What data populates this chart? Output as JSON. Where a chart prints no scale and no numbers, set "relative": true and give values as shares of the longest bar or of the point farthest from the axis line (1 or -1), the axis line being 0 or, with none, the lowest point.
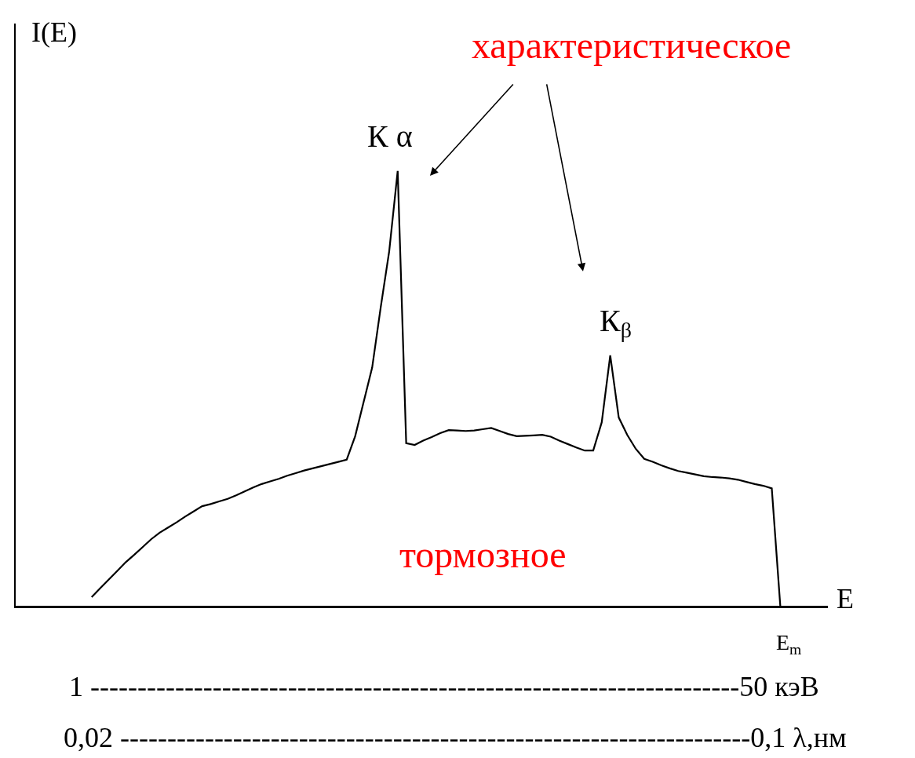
{
  "chart_data": {
    "type": "line",
    "relative": true,
    "xlabel": "E",
    "ylabel": "I(E)",
    "annotations": [
      "характеристическое",
      "К α",
      "К$_{β}$",
      "тормозное",
      "E$_{m}$",
      "1 ---------------------------------------------------------------------50 кэВ",
      "0,02 -------------------------------------------------------------------0,1 λ,нм"
    ],
    "categories": [
      null,
      null,
      null,
      null,
      null,
      null,
      null,
      null,
      null,
      null,
      null,
      null,
      null,
      null,
      null,
      null,
      null,
      null,
      null,
      null,
      null,
      null,
      null,
      null,
      null,
      null,
      null,
      null,
      null,
      null,
      null,
      null,
      null,
      null,
      null,
      null,
      null,
      null,
      null,
      null,
      null,
      null,
      null,
      null,
      null,
      null,
      null,
      null,
      null,
      null,
      null,
      null,
      null,
      null,
      null,
      null,
      null,
      null,
      null,
      null,
      null,
      null,
      null,
      null,
      null,
      null,
      null,
      null,
      null,
      null,
      null,
      null,
      null,
      null,
      null,
      null,
      null,
      null,
      null,
      null,
      null,
      null
    ],
    "series": [
      {
        "color": "#000000",
        "values": [
          0.02,
          0.04,
          0.06,
          0.08,
          0.1,
          0.117,
          0.135,
          0.153,
          0.168,
          0.18,
          0.192,
          0.205,
          0.217,
          0.229,
          0.234,
          0.24,
          0.246,
          0.254,
          0.263,
          0.272,
          0.28,
          0.286,
          0.292,
          0.299,
          0.305,
          0.311,
          0.316,
          0.321,
          0.326,
          0.331,
          0.336,
          0.39,
          0.469,
          0.548,
          0.686,
          0.815,
          1,
          0.374,
          0.37,
          0.38,
          0.388,
          0.397,
          0.404,
          0.403,
          0.402,
          0.403,
          0.406,
          0.409,
          0.402,
          0.395,
          0.39,
          0.391,
          0.392,
          0.393,
          0.389,
          0.38,
          0.372,
          0.364,
          0.357,
          0.357,
          0.422,
          0.576,
          0.433,
          0.393,
          0.361,
          0.338,
          0.331,
          0.323,
          0.316,
          0.31,
          0.306,
          0.302,
          0.298,
          0.296,
          0.295,
          0.293,
          0.29,
          0.285,
          0.28,
          0.276,
          0.27,
          0
        ]
      }
    ]
  }
}
